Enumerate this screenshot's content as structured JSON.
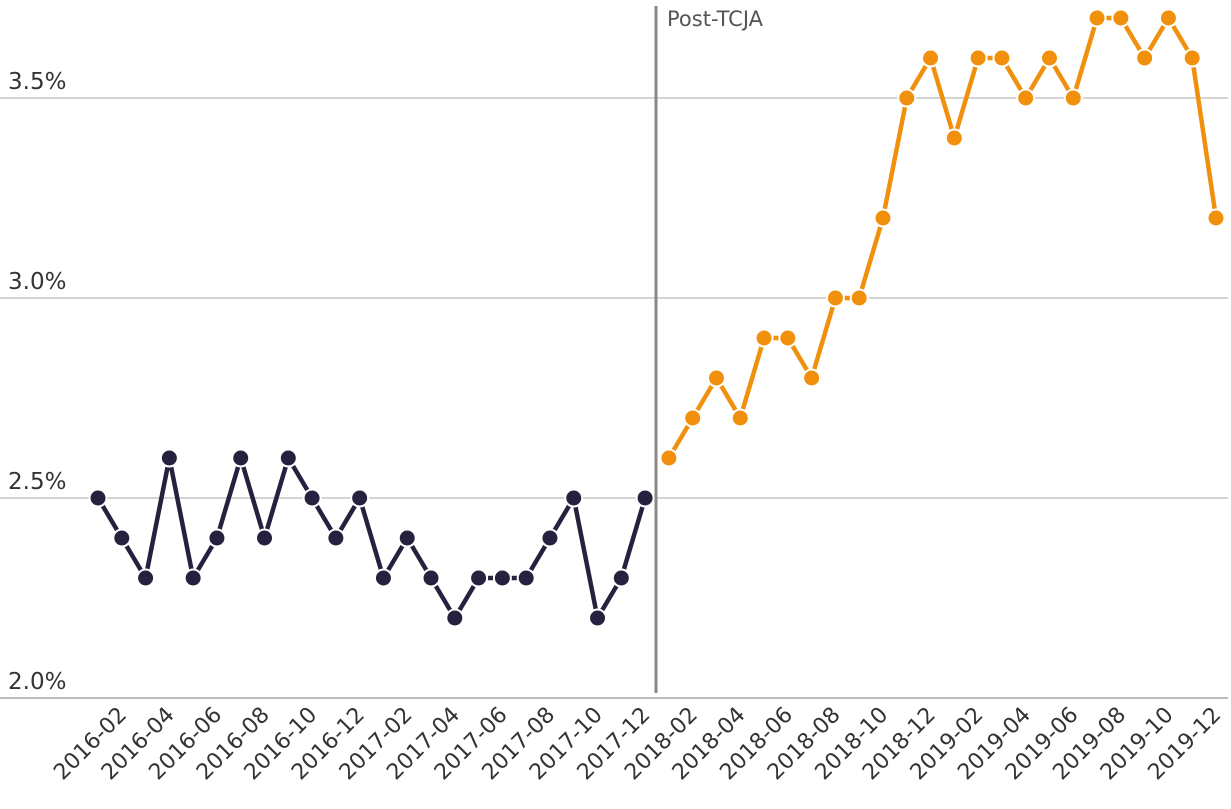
{
  "chart_data": {
    "type": "line",
    "annotation": "Post-TCJA",
    "categories": [
      null,
      "2016-02",
      null,
      "2016-04",
      null,
      "2016-06",
      null,
      "2016-08",
      null,
      "2016-10",
      null,
      "2016-12",
      null,
      "2017-02",
      null,
      "2017-04",
      null,
      "2017-06",
      null,
      "2017-08",
      null,
      "2017-10",
      null,
      "2017-12",
      null,
      "2018-02",
      null,
      "2018-04",
      null,
      "2018-06",
      null,
      "2018-08",
      null,
      "2018-10",
      null,
      "2018-12",
      null,
      "2019-02",
      null,
      "2019-04",
      null,
      "2019-06",
      null,
      "2019-08",
      null,
      "2019-10",
      null,
      "2019-12"
    ],
    "series": [
      {
        "color": "#25223f",
        "values": [
          2.5,
          2.4,
          2.3,
          2.6,
          2.3,
          2.4,
          2.6,
          2.4,
          2.6,
          2.5,
          2.4,
          2.5,
          2.3,
          2.4,
          2.3,
          2.2,
          2.3,
          2.3,
          2.3,
          2.4,
          2.5,
          2.2,
          2.3,
          2.5,
          null,
          null,
          null,
          null,
          null,
          null,
          null,
          null,
          null,
          null,
          null,
          null,
          null,
          null,
          null,
          null,
          null,
          null,
          null,
          null,
          null,
          null,
          null,
          null
        ]
      },
      {
        "color": "#f0900c",
        "values": [
          null,
          null,
          null,
          null,
          null,
          null,
          null,
          null,
          null,
          null,
          null,
          null,
          null,
          null,
          null,
          null,
          null,
          null,
          null,
          null,
          null,
          null,
          null,
          null,
          2.6,
          2.7,
          2.8,
          2.7,
          2.9,
          2.9,
          2.8,
          3.0,
          3.0,
          3.2,
          3.5,
          3.6,
          3.4,
          3.6,
          3.6,
          3.5,
          3.6,
          3.5,
          3.7,
          3.7,
          3.6,
          3.7,
          3.6,
          3.2
        ]
      }
    ],
    "ylim": [
      2.0,
      3.75
    ],
    "yticks": [
      {
        "value": 2.0,
        "label": "2.0%"
      },
      {
        "value": 2.5,
        "label": "2.5%"
      },
      {
        "value": 3.0,
        "label": "3.0%"
      },
      {
        "value": 3.5,
        "label": "3.5%"
      }
    ],
    "grid": true
  }
}
